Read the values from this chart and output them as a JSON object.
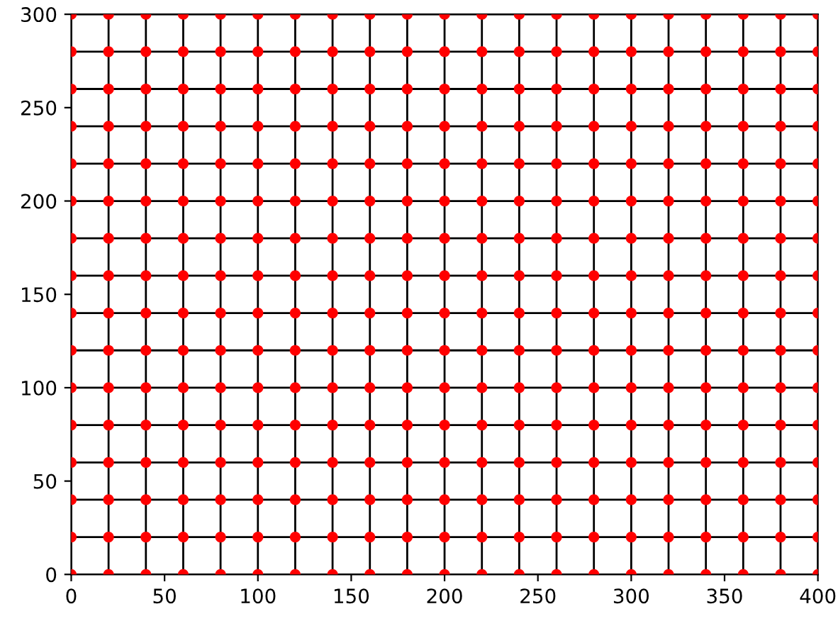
{
  "chart_data": {
    "type": "scatter",
    "x": [
      0,
      20,
      40,
      60,
      80,
      100,
      120,
      140,
      160,
      180,
      200,
      220,
      240,
      260,
      280,
      300,
      320,
      340,
      360,
      380,
      400
    ],
    "xlim": [
      0,
      400
    ],
    "ylim": [
      0,
      300
    ],
    "xticks": [
      0,
      50,
      100,
      150,
      200,
      250,
      300,
      350,
      400
    ],
    "yticks": [
      0,
      50,
      100,
      150,
      200,
      250,
      300
    ],
    "grid": false,
    "series": [
      {
        "type": "line",
        "color": "#000000",
        "marker": "none",
        "x": [
          0,
          400
        ],
        "values": [
          0,
          0
        ]
      },
      {
        "type": "line",
        "color": "#000000",
        "marker": "none",
        "x": [
          0,
          400
        ],
        "values": [
          20,
          20
        ]
      },
      {
        "type": "line",
        "color": "#000000",
        "marker": "none",
        "x": [
          0,
          400
        ],
        "values": [
          40,
          40
        ]
      },
      {
        "type": "line",
        "color": "#000000",
        "marker": "none",
        "x": [
          0,
          400
        ],
        "values": [
          60,
          60
        ]
      },
      {
        "type": "line",
        "color": "#000000",
        "marker": "none",
        "x": [
          0,
          400
        ],
        "values": [
          80,
          80
        ]
      },
      {
        "type": "line",
        "color": "#000000",
        "marker": "none",
        "x": [
          0,
          400
        ],
        "values": [
          100,
          100
        ]
      },
      {
        "type": "line",
        "color": "#000000",
        "marker": "none",
        "x": [
          0,
          400
        ],
        "values": [
          120,
          120
        ]
      },
      {
        "type": "line",
        "color": "#000000",
        "marker": "none",
        "x": [
          0,
          400
        ],
        "values": [
          140,
          140
        ]
      },
      {
        "type": "line",
        "color": "#000000",
        "marker": "none",
        "x": [
          0,
          400
        ],
        "values": [
          160,
          160
        ]
      },
      {
        "type": "line",
        "color": "#000000",
        "marker": "none",
        "x": [
          0,
          400
        ],
        "values": [
          180,
          180
        ]
      },
      {
        "type": "line",
        "color": "#000000",
        "marker": "none",
        "x": [
          0,
          400
        ],
        "values": [
          200,
          200
        ]
      },
      {
        "type": "line",
        "color": "#000000",
        "marker": "none",
        "x": [
          0,
          400
        ],
        "values": [
          220,
          220
        ]
      },
      {
        "type": "line",
        "color": "#000000",
        "marker": "none",
        "x": [
          0,
          400
        ],
        "values": [
          240,
          240
        ]
      },
      {
        "type": "line",
        "color": "#000000",
        "marker": "none",
        "x": [
          0,
          400
        ],
        "values": [
          260,
          260
        ]
      },
      {
        "type": "line",
        "color": "#000000",
        "marker": "none",
        "x": [
          0,
          400
        ],
        "values": [
          280,
          280
        ]
      },
      {
        "type": "line",
        "color": "#000000",
        "marker": "none",
        "x": [
          0,
          400
        ],
        "values": [
          300,
          300
        ]
      },
      {
        "type": "line",
        "color": "#000000",
        "marker": "none",
        "x": [
          0,
          0
        ],
        "values": [
          0,
          300
        ]
      },
      {
        "type": "line",
        "color": "#000000",
        "marker": "none",
        "x": [
          20,
          20
        ],
        "values": [
          0,
          300
        ]
      },
      {
        "type": "line",
        "color": "#000000",
        "marker": "none",
        "x": [
          40,
          40
        ],
        "values": [
          0,
          300
        ]
      },
      {
        "type": "line",
        "color": "#000000",
        "marker": "none",
        "x": [
          60,
          60
        ],
        "values": [
          0,
          300
        ]
      },
      {
        "type": "line",
        "color": "#000000",
        "marker": "none",
        "x": [
          80,
          80
        ],
        "values": [
          0,
          300
        ]
      },
      {
        "type": "line",
        "color": "#000000",
        "marker": "none",
        "x": [
          100,
          100
        ],
        "values": [
          0,
          300
        ]
      },
      {
        "type": "line",
        "color": "#000000",
        "marker": "none",
        "x": [
          120,
          120
        ],
        "values": [
          0,
          300
        ]
      },
      {
        "type": "line",
        "color": "#000000",
        "marker": "none",
        "x": [
          140,
          140
        ],
        "values": [
          0,
          300
        ]
      },
      {
        "type": "line",
        "color": "#000000",
        "marker": "none",
        "x": [
          160,
          160
        ],
        "values": [
          0,
          300
        ]
      },
      {
        "type": "line",
        "color": "#000000",
        "marker": "none",
        "x": [
          180,
          180
        ],
        "values": [
          0,
          300
        ]
      },
      {
        "type": "line",
        "color": "#000000",
        "marker": "none",
        "x": [
          200,
          200
        ],
        "values": [
          0,
          300
        ]
      },
      {
        "type": "line",
        "color": "#000000",
        "marker": "none",
        "x": [
          220,
          220
        ],
        "values": [
          0,
          300
        ]
      },
      {
        "type": "line",
        "color": "#000000",
        "marker": "none",
        "x": [
          240,
          240
        ],
        "values": [
          0,
          300
        ]
      },
      {
        "type": "line",
        "color": "#000000",
        "marker": "none",
        "x": [
          260,
          260
        ],
        "values": [
          0,
          300
        ]
      },
      {
        "type": "line",
        "color": "#000000",
        "marker": "none",
        "x": [
          280,
          280
        ],
        "values": [
          0,
          300
        ]
      },
      {
        "type": "line",
        "color": "#000000",
        "marker": "none",
        "x": [
          300,
          300
        ],
        "values": [
          0,
          300
        ]
      },
      {
        "type": "line",
        "color": "#000000",
        "marker": "none",
        "x": [
          320,
          320
        ],
        "values": [
          0,
          300
        ]
      },
      {
        "type": "line",
        "color": "#000000",
        "marker": "none",
        "x": [
          340,
          340
        ],
        "values": [
          0,
          300
        ]
      },
      {
        "type": "line",
        "color": "#000000",
        "marker": "none",
        "x": [
          360,
          360
        ],
        "values": [
          0,
          300
        ]
      },
      {
        "type": "line",
        "color": "#000000",
        "marker": "none",
        "x": [
          380,
          380
        ],
        "values": [
          0,
          300
        ]
      },
      {
        "type": "line",
        "color": "#000000",
        "marker": "none",
        "x": [
          400,
          400
        ],
        "values": [
          0,
          300
        ]
      },
      {
        "color": "#ff0000",
        "marker": "circle",
        "values": [
          0,
          0,
          0,
          0,
          0,
          0,
          0,
          0,
          0,
          0,
          0,
          0,
          0,
          0,
          0,
          0,
          0,
          0,
          0,
          0,
          0
        ]
      },
      {
        "color": "#ff0000",
        "marker": "circle",
        "values": [
          20,
          20,
          20,
          20,
          20,
          20,
          20,
          20,
          20,
          20,
          20,
          20,
          20,
          20,
          20,
          20,
          20,
          20,
          20,
          20,
          20
        ]
      },
      {
        "color": "#ff0000",
        "marker": "circle",
        "values": [
          40,
          40,
          40,
          40,
          40,
          40,
          40,
          40,
          40,
          40,
          40,
          40,
          40,
          40,
          40,
          40,
          40,
          40,
          40,
          40,
          40
        ]
      },
      {
        "color": "#ff0000",
        "marker": "circle",
        "values": [
          60,
          60,
          60,
          60,
          60,
          60,
          60,
          60,
          60,
          60,
          60,
          60,
          60,
          60,
          60,
          60,
          60,
          60,
          60,
          60,
          60
        ]
      },
      {
        "color": "#ff0000",
        "marker": "circle",
        "values": [
          80,
          80,
          80,
          80,
          80,
          80,
          80,
          80,
          80,
          80,
          80,
          80,
          80,
          80,
          80,
          80,
          80,
          80,
          80,
          80,
          80
        ]
      },
      {
        "color": "#ff0000",
        "marker": "circle",
        "values": [
          100,
          100,
          100,
          100,
          100,
          100,
          100,
          100,
          100,
          100,
          100,
          100,
          100,
          100,
          100,
          100,
          100,
          100,
          100,
          100,
          100
        ]
      },
      {
        "color": "#ff0000",
        "marker": "circle",
        "values": [
          120,
          120,
          120,
          120,
          120,
          120,
          120,
          120,
          120,
          120,
          120,
          120,
          120,
          120,
          120,
          120,
          120,
          120,
          120,
          120,
          120
        ]
      },
      {
        "color": "#ff0000",
        "marker": "circle",
        "values": [
          140,
          140,
          140,
          140,
          140,
          140,
          140,
          140,
          140,
          140,
          140,
          140,
          140,
          140,
          140,
          140,
          140,
          140,
          140,
          140,
          140
        ]
      },
      {
        "color": "#ff0000",
        "marker": "circle",
        "values": [
          160,
          160,
          160,
          160,
          160,
          160,
          160,
          160,
          160,
          160,
          160,
          160,
          160,
          160,
          160,
          160,
          160,
          160,
          160,
          160,
          160
        ]
      },
      {
        "color": "#ff0000",
        "marker": "circle",
        "values": [
          180,
          180,
          180,
          180,
          180,
          180,
          180,
          180,
          180,
          180,
          180,
          180,
          180,
          180,
          180,
          180,
          180,
          180,
          180,
          180,
          180
        ]
      },
      {
        "color": "#ff0000",
        "marker": "circle",
        "values": [
          200,
          200,
          200,
          200,
          200,
          200,
          200,
          200,
          200,
          200,
          200,
          200,
          200,
          200,
          200,
          200,
          200,
          200,
          200,
          200,
          200
        ]
      },
      {
        "color": "#ff0000",
        "marker": "circle",
        "values": [
          220,
          220,
          220,
          220,
          220,
          220,
          220,
          220,
          220,
          220,
          220,
          220,
          220,
          220,
          220,
          220,
          220,
          220,
          220,
          220,
          220
        ]
      },
      {
        "color": "#ff0000",
        "marker": "circle",
        "values": [
          240,
          240,
          240,
          240,
          240,
          240,
          240,
          240,
          240,
          240,
          240,
          240,
          240,
          240,
          240,
          240,
          240,
          240,
          240,
          240,
          240
        ]
      },
      {
        "color": "#ff0000",
        "marker": "circle",
        "values": [
          260,
          260,
          260,
          260,
          260,
          260,
          260,
          260,
          260,
          260,
          260,
          260,
          260,
          260,
          260,
          260,
          260,
          260,
          260,
          260,
          260
        ]
      },
      {
        "color": "#ff0000",
        "marker": "circle",
        "values": [
          280,
          280,
          280,
          280,
          280,
          280,
          280,
          280,
          280,
          280,
          280,
          280,
          280,
          280,
          280,
          280,
          280,
          280,
          280,
          280,
          280
        ]
      },
      {
        "color": "#ff0000",
        "marker": "circle",
        "values": [
          300,
          300,
          300,
          300,
          300,
          300,
          300,
          300,
          300,
          300,
          300,
          300,
          300,
          300,
          300,
          300,
          300,
          300,
          300,
          300,
          300
        ]
      }
    ]
  }
}
